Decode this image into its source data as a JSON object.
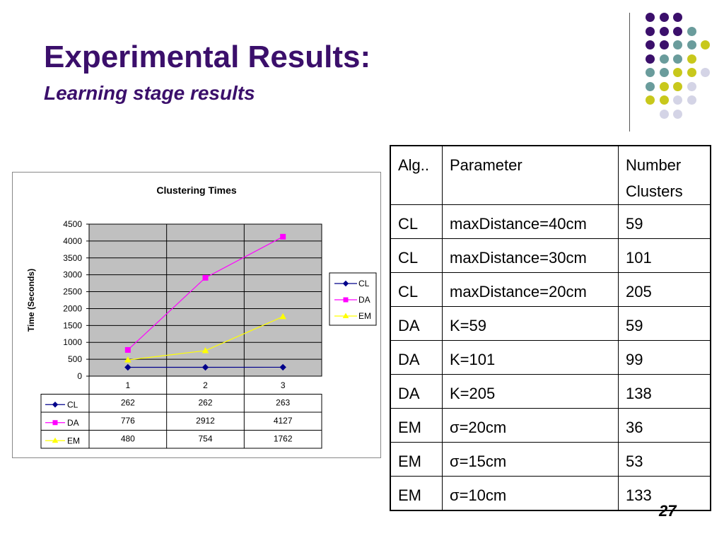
{
  "slide": {
    "title": "Experimental Results:",
    "subtitle": "Learning stage results",
    "page_number": "27"
  },
  "decoration": {
    "colors": {
      "purple": "#3b0f6b",
      "teal": "#6a9c9c",
      "yellow": "#c8c81c",
      "lavender": "#d4d4e6"
    },
    "dot_rows": [
      [
        "purple",
        "purple",
        "purple"
      ],
      [
        "purple",
        "purple",
        "purple",
        "teal"
      ],
      [
        "purple",
        "purple",
        "teal",
        "teal",
        "yellow"
      ],
      [
        "purple",
        "teal",
        "teal",
        "yellow"
      ],
      [
        "teal",
        "teal",
        "yellow",
        "yellow",
        "lavender"
      ],
      [
        "teal",
        "yellow",
        "yellow",
        "lavender"
      ],
      [
        "yellow",
        "yellow",
        "lavender",
        "lavender"
      ],
      [
        "lavender",
        "lavender"
      ]
    ]
  },
  "chart_data": {
    "type": "line",
    "title": "Clustering Times",
    "ylabel": "Time (Seconds)",
    "xlabel": "",
    "categories": [
      "1",
      "2",
      "3"
    ],
    "ylim": [
      0,
      4500
    ],
    "yticks": [
      0,
      500,
      1000,
      1500,
      2000,
      2500,
      3000,
      3500,
      4000,
      4500
    ],
    "grid": true,
    "legend": "right",
    "plot_background": "#c0c0c0",
    "series": [
      {
        "name": "CL",
        "values": [
          262,
          262,
          263
        ],
        "color": "#00008b",
        "marker": "diamond"
      },
      {
        "name": "DA",
        "values": [
          776,
          2912,
          4127
        ],
        "color": "#ff00ff",
        "marker": "square"
      },
      {
        "name": "EM",
        "values": [
          480,
          754,
          1762
        ],
        "color": "#ffff00",
        "marker": "triangle"
      }
    ],
    "data_table": true
  },
  "table": {
    "headers": [
      "Alg..",
      "Parameter",
      "Number Clusters"
    ],
    "rows": [
      [
        "CL",
        "maxDistance=40cm",
        "59"
      ],
      [
        "CL",
        "maxDistance=30cm",
        "101"
      ],
      [
        "CL",
        "maxDistance=20cm",
        "205"
      ],
      [
        "DA",
        "K=59",
        "59"
      ],
      [
        "DA",
        "K=101",
        "99"
      ],
      [
        "DA",
        "K=205",
        "138"
      ],
      [
        "EM",
        "σ=20cm",
        "36"
      ],
      [
        "EM",
        "σ=15cm",
        "53"
      ],
      [
        "EM",
        "σ=10cm",
        "133"
      ]
    ]
  }
}
